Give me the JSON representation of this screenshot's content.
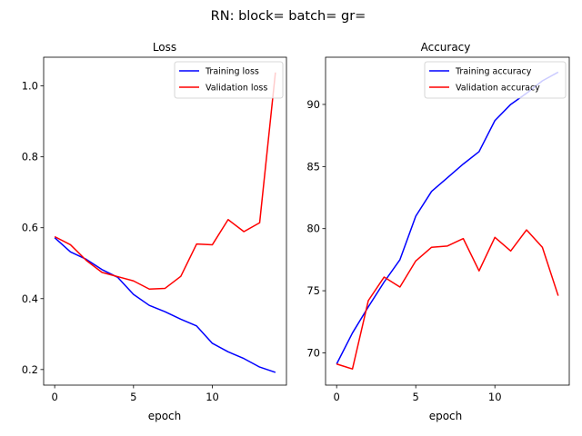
{
  "figure": {
    "suptitle": "RN: block= batch= gr="
  },
  "chart_data": [
    {
      "type": "line",
      "title": "Loss",
      "xlabel": "epoch",
      "ylabel": "",
      "xlim": [
        -0.7,
        14.7
      ],
      "ylim": [
        0.156,
        1.081
      ],
      "xticks": [
        0,
        5,
        10
      ],
      "yticks": [
        0.2,
        0.4,
        0.6,
        0.8,
        1.0
      ],
      "ytick_labels": [
        "0.2",
        "0.4",
        "0.6",
        "0.8",
        "1.0"
      ],
      "legend_position": "top-right",
      "grid": false,
      "x": [
        0,
        1,
        2,
        3,
        4,
        5,
        6,
        7,
        8,
        9,
        10,
        11,
        12,
        13,
        14
      ],
      "series": [
        {
          "name": "Training loss",
          "color": "#0000ff",
          "values": [
            0.572,
            0.532,
            0.511,
            0.482,
            0.46,
            0.412,
            0.381,
            0.363,
            0.342,
            0.323,
            0.274,
            0.25,
            0.231,
            0.207,
            0.192
          ]
        },
        {
          "name": "Validation loss",
          "color": "#ff0000",
          "values": [
            0.575,
            0.552,
            0.508,
            0.474,
            0.462,
            0.45,
            0.427,
            0.429,
            0.463,
            0.554,
            0.552,
            0.623,
            0.589,
            0.614,
            1.038
          ]
        }
      ]
    },
    {
      "type": "line",
      "title": "Accuracy",
      "xlabel": "epoch",
      "ylabel": "",
      "xlim": [
        -0.7,
        14.7
      ],
      "ylim": [
        67.4,
        93.8
      ],
      "xticks": [
        0,
        5,
        10
      ],
      "yticks": [
        70,
        75,
        80,
        85,
        90
      ],
      "ytick_labels": [
        "70",
        "75",
        "80",
        "85",
        "90"
      ],
      "legend_position": "top-right",
      "grid": false,
      "x": [
        0,
        1,
        2,
        3,
        4,
        5,
        6,
        7,
        8,
        9,
        10,
        11,
        12,
        13,
        14
      ],
      "series": [
        {
          "name": "Training accuracy",
          "color": "#0000ff",
          "values": [
            69.1,
            71.6,
            73.7,
            75.7,
            77.5,
            81.0,
            83.0,
            84.1,
            85.2,
            86.2,
            88.7,
            90.0,
            90.9,
            91.9,
            92.6
          ]
        },
        {
          "name": "Validation accuracy",
          "color": "#ff0000",
          "values": [
            69.1,
            68.7,
            74.2,
            76.1,
            75.3,
            77.4,
            78.5,
            78.6,
            79.2,
            76.6,
            79.3,
            78.2,
            79.9,
            78.5,
            74.6
          ]
        }
      ]
    }
  ]
}
